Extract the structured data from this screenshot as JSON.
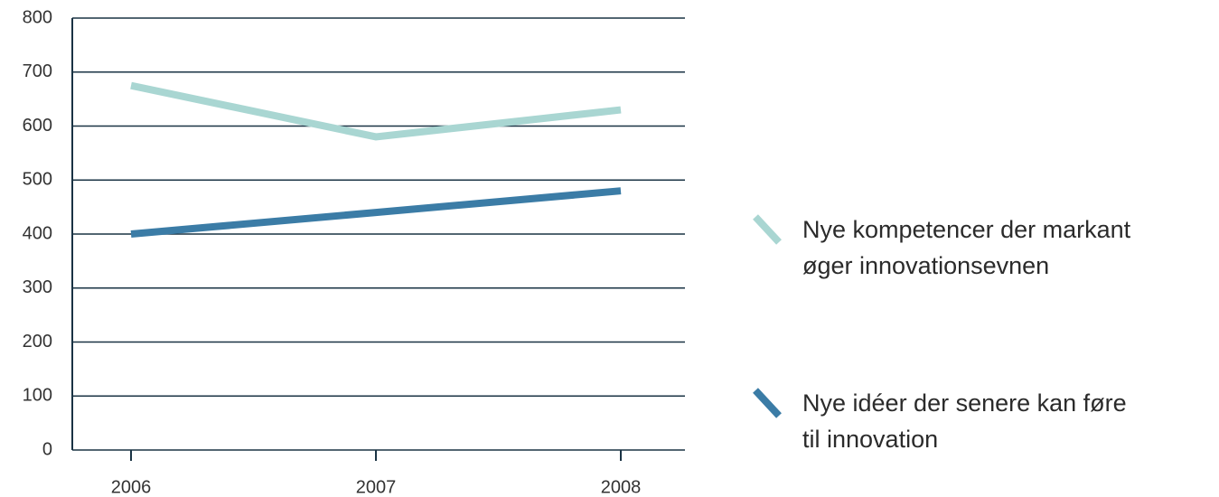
{
  "chart_data": {
    "type": "line",
    "categories": [
      "2006",
      "2007",
      "2008"
    ],
    "series": [
      {
        "name": "Nye kompetencer der markant\nøger innovationsevnen",
        "color": "#a9d6d2",
        "values": [
          675,
          580,
          630
        ]
      },
      {
        "name": "Nye idéer der senere kan føre\ntil innovation",
        "color": "#3b7ca6",
        "values": [
          400,
          440,
          480
        ]
      }
    ],
    "ylim": [
      0,
      800
    ],
    "yticks": [
      0,
      100,
      200,
      300,
      400,
      500,
      600,
      700,
      800
    ],
    "grid": true,
    "legend": "right"
  }
}
